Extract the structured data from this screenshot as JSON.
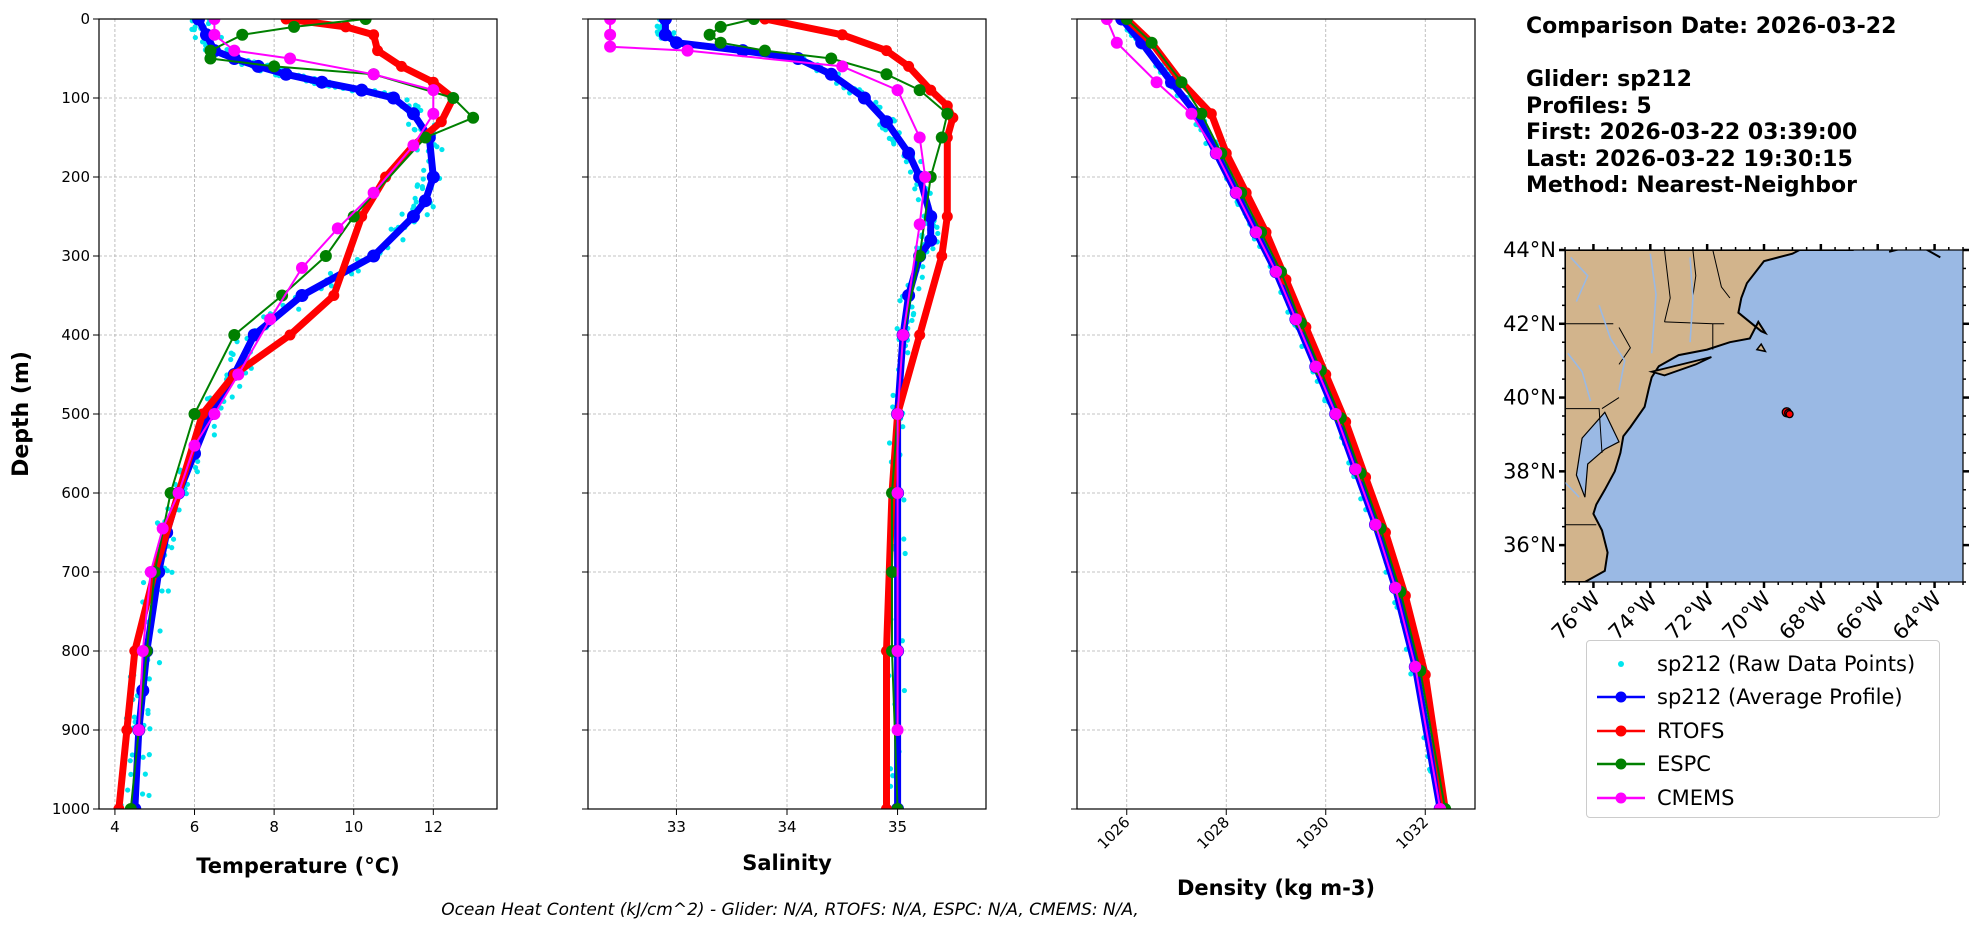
{
  "info": {
    "comparison_date": "Comparison Date: 2026-03-22",
    "glider": "Glider: sp212",
    "profiles": "Profiles: 5",
    "first": "First: 2026-03-22 03:39:00",
    "last": "Last: 2026-03-22 19:30:15",
    "method": "Method: Nearest-Neighbor"
  },
  "footer": "Ocean Heat Content (kJ/cm^2) - Glider: N/A,  RTOFS: N/A,  ESPC: N/A,  CMEMS: N/A,",
  "colors": {
    "raw": "#00e5ee",
    "glider": "#0000ff",
    "rtofs": "#ff0000",
    "espc": "#008000",
    "cmems": "#ff00ff",
    "land": "#d2b48c",
    "ocean": "#9ab9e4"
  },
  "legend": [
    {
      "label": "sp212 (Raw Data Points)",
      "key": "raw"
    },
    {
      "label": "sp212 (Average Profile)",
      "key": "glider"
    },
    {
      "label": "RTOFS",
      "key": "rtofs"
    },
    {
      "label": "ESPC",
      "key": "espc"
    },
    {
      "label": "CMEMS",
      "key": "cmems"
    }
  ],
  "chart_data": [
    {
      "type": "line",
      "xlabel": "Temperature (°C)",
      "ylabel": "Depth (m)",
      "xlim": [
        3.6,
        13.6
      ],
      "ylim": [
        1000,
        0
      ],
      "xticks": [
        4,
        6,
        8,
        10,
        12
      ],
      "yticks": [
        0,
        100,
        200,
        300,
        400,
        500,
        600,
        700,
        800,
        900,
        1000
      ],
      "grid": true,
      "series": [
        {
          "name": "sp212 (Average Profile)",
          "key": "glider",
          "x": [
            6.1,
            6.3,
            6.5,
            7.0,
            7.6,
            8.3,
            9.2,
            10.2,
            11.0,
            11.5,
            11.9,
            12.0,
            11.8,
            11.5,
            10.5,
            8.7,
            7.5,
            7.0,
            6.4,
            6.0,
            5.6,
            5.3,
            5.1,
            4.8,
            4.7,
            4.6,
            4.5
          ],
          "y": [
            0,
            20,
            40,
            50,
            60,
            70,
            80,
            90,
            100,
            120,
            150,
            200,
            230,
            250,
            300,
            350,
            400,
            450,
            500,
            550,
            600,
            650,
            700,
            800,
            850,
            900,
            1000
          ]
        },
        {
          "name": "RTOFS",
          "key": "rtofs",
          "x": [
            8.3,
            9.8,
            10.5,
            10.6,
            11.2,
            12.0,
            12.5,
            12.2,
            11.5,
            10.8,
            10.2,
            9.5,
            8.4,
            7.0,
            6.2,
            5.6,
            5.0,
            4.5,
            4.3,
            4.1
          ],
          "y": [
            0,
            10,
            20,
            40,
            60,
            80,
            100,
            130,
            160,
            200,
            250,
            350,
            400,
            450,
            500,
            600,
            700,
            800,
            900,
            1000
          ]
        },
        {
          "name": "ESPC",
          "key": "espc",
          "x": [
            10.3,
            8.5,
            7.2,
            6.4,
            6.4,
            8.0,
            10.5,
            12.5,
            13.0,
            11.8,
            10.0,
            9.3,
            8.2,
            7.0,
            6.0,
            5.4,
            5.0,
            4.8,
            4.6,
            4.4
          ],
          "y": [
            0,
            10,
            20,
            40,
            50,
            60,
            70,
            100,
            125,
            150,
            250,
            300,
            350,
            400,
            500,
            600,
            700,
            800,
            900,
            1000
          ]
        },
        {
          "name": "CMEMS",
          "key": "cmems",
          "x": [
            6.5,
            6.5,
            7.0,
            8.4,
            10.5,
            12.0,
            12.0,
            11.5,
            10.5,
            9.6,
            8.7,
            7.9,
            7.1,
            6.5,
            6.0,
            5.6,
            5.2,
            4.9,
            4.7,
            4.6
          ],
          "y": [
            0,
            20,
            40,
            50,
            70,
            90,
            120,
            160,
            220,
            265,
            315,
            380,
            450,
            500,
            540,
            600,
            645,
            700,
            800,
            900
          ]
        }
      ]
    },
    {
      "type": "line",
      "xlabel": "Salinity",
      "xlim": [
        32.2,
        35.8
      ],
      "ylim": [
        1000,
        0
      ],
      "xticks": [
        33,
        34,
        35
      ],
      "grid": true,
      "series": [
        {
          "name": "sp212 (Average Profile)",
          "key": "glider",
          "x": [
            32.9,
            32.9,
            33.0,
            33.6,
            34.1,
            34.4,
            34.7,
            34.9,
            35.1,
            35.2,
            35.3,
            35.3,
            35.2,
            35.1,
            35.05,
            35.0,
            35.0,
            35.0,
            35.0
          ],
          "y": [
            0,
            20,
            30,
            40,
            50,
            70,
            100,
            130,
            170,
            200,
            250,
            280,
            300,
            350,
            400,
            500,
            600,
            800,
            1000
          ]
        },
        {
          "name": "RTOFS",
          "key": "rtofs",
          "x": [
            33.8,
            34.5,
            34.9,
            35.1,
            35.3,
            35.45,
            35.5,
            35.45,
            35.45,
            35.4,
            35.2,
            35.0,
            34.95,
            34.9,
            34.9
          ],
          "y": [
            0,
            20,
            40,
            60,
            90,
            110,
            125,
            150,
            250,
            300,
            400,
            500,
            600,
            800,
            1000
          ]
        },
        {
          "name": "ESPC",
          "key": "espc",
          "x": [
            33.7,
            33.4,
            33.3,
            33.4,
            33.8,
            34.4,
            34.9,
            35.2,
            35.45,
            35.4,
            35.3,
            35.2,
            35.05,
            35.0,
            34.95,
            34.95,
            34.95,
            35.0
          ],
          "y": [
            0,
            10,
            20,
            30,
            40,
            50,
            70,
            90,
            120,
            150,
            200,
            300,
            400,
            500,
            600,
            700,
            800,
            1000
          ]
        },
        {
          "name": "CMEMS",
          "key": "cmems",
          "x": [
            32.4,
            32.4,
            32.4,
            33.1,
            34.5,
            35.0,
            35.2,
            35.25,
            35.2,
            35.05,
            35.0,
            35.0,
            35.0,
            35.0
          ],
          "y": [
            0,
            20,
            35,
            40,
            60,
            90,
            150,
            200,
            260,
            400,
            500,
            600,
            800,
            900
          ]
        }
      ]
    },
    {
      "type": "line",
      "xlabel": "Density (kg m-3)",
      "xlim": [
        1025.0,
        1033.0
      ],
      "ylim": [
        1000,
        0
      ],
      "xticks": [
        1026,
        1028,
        1030,
        1032
      ],
      "grid": true,
      "series": [
        {
          "name": "sp212 (Average Profile)",
          "key": "glider",
          "x": [
            1025.9,
            1026.3,
            1026.9,
            1027.4,
            1027.8,
            1028.2,
            1028.6,
            1029.0,
            1029.4,
            1029.8,
            1030.2,
            1030.6,
            1031.0,
            1031.4,
            1031.8,
            1032.3
          ],
          "y": [
            0,
            30,
            80,
            120,
            170,
            220,
            270,
            320,
            380,
            440,
            500,
            570,
            640,
            720,
            820,
            1000
          ]
        },
        {
          "name": "RTOFS",
          "key": "rtofs",
          "x": [
            1026.0,
            1026.5,
            1027.1,
            1027.7,
            1028.0,
            1028.4,
            1028.8,
            1029.2,
            1029.6,
            1030.0,
            1030.4,
            1030.8,
            1031.2,
            1031.6,
            1032.0,
            1032.4
          ],
          "y": [
            0,
            30,
            80,
            120,
            170,
            220,
            270,
            330,
            390,
            450,
            510,
            580,
            650,
            730,
            830,
            1000
          ]
        },
        {
          "name": "ESPC",
          "key": "espc",
          "x": [
            1026.0,
            1026.5,
            1027.1,
            1027.5,
            1027.9,
            1028.3,
            1028.7,
            1029.1,
            1029.5,
            1029.9,
            1030.3,
            1030.7,
            1031.1,
            1031.5,
            1031.9,
            1032.4
          ],
          "y": [
            0,
            30,
            80,
            120,
            170,
            220,
            270,
            320,
            385,
            445,
            505,
            575,
            645,
            725,
            825,
            1000
          ]
        },
        {
          "name": "CMEMS",
          "key": "cmems",
          "x": [
            1025.6,
            1025.8,
            1026.6,
            1027.3,
            1027.8,
            1028.2,
            1028.6,
            1029.0,
            1029.4,
            1029.8,
            1030.2,
            1030.6,
            1031.0,
            1031.4,
            1031.8,
            1032.3
          ],
          "y": [
            0,
            30,
            80,
            120,
            170,
            220,
            270,
            320,
            380,
            440,
            500,
            570,
            640,
            720,
            820,
            1000
          ]
        }
      ]
    },
    {
      "type": "map",
      "xlim": [
        -77,
        -63
      ],
      "ylim": [
        35,
        44
      ],
      "xticks": [
        -76,
        -74,
        -72,
        -70,
        -68,
        -66,
        -64
      ],
      "xticklabels": [
        "76°W",
        "74°W",
        "72°W",
        "70°W",
        "68°W",
        "66°W",
        "64°W"
      ],
      "yticks": [
        36,
        38,
        40,
        42,
        44
      ],
      "yticklabels": [
        "36°N",
        "38°N",
        "40°N",
        "42°N",
        "44°N"
      ],
      "glider_positions": [
        [
          -69.2,
          39.6
        ],
        [
          -69.15,
          39.58
        ],
        [
          -69.1,
          39.55
        ]
      ]
    }
  ]
}
